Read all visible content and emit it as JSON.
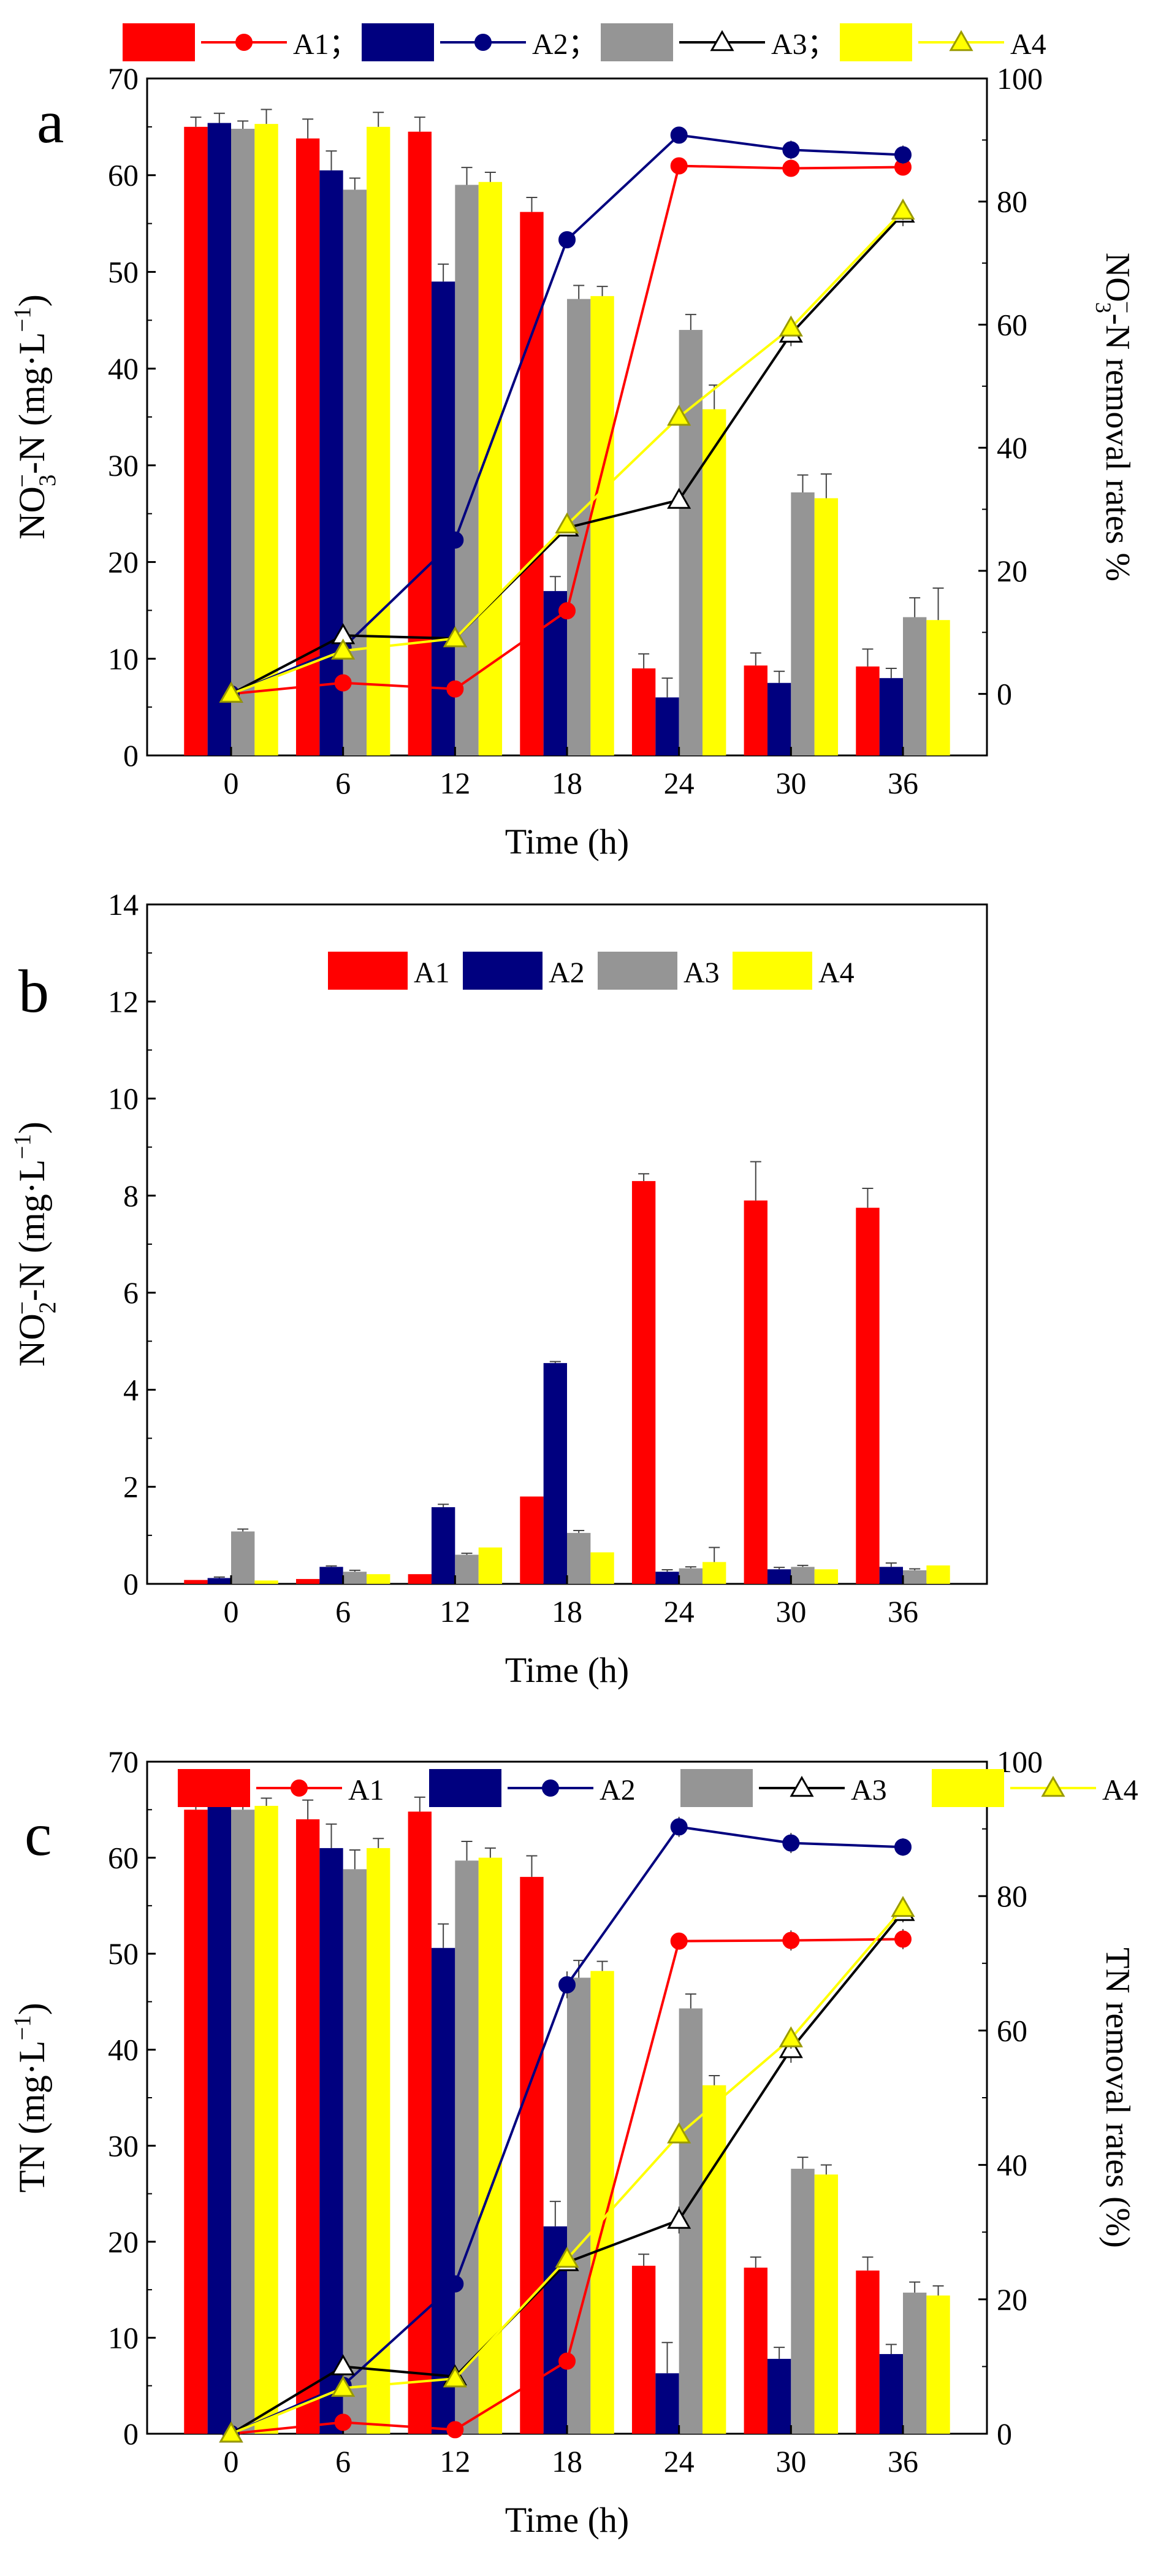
{
  "colors": {
    "A1": "#ff0000",
    "A2": "#00007f",
    "A3": "#959595",
    "A4": "#ffff00",
    "A3_line": "#000000",
    "errorbar": "#444444"
  },
  "chart_data": [
    {
      "type": "bar",
      "panel_letter": "a",
      "categories": [
        "0",
        "6",
        "12",
        "18",
        "24",
        "30",
        "36"
      ],
      "xlabel": "Time (h)",
      "ylabel": "NO3−-N (mg·L−1)",
      "ylabel_parts": [
        "NO",
        "3",
        "−",
        "-N (mg·L",
        "−1",
        ")"
      ],
      "ylim": [
        0,
        70
      ],
      "yticks": [
        "0",
        "10",
        "20",
        "30",
        "40",
        "50",
        "60",
        "70"
      ],
      "y2label": "NO3−-N removal rates %",
      "y2label_parts": [
        "NO",
        "3",
        "−",
        "-N removal rates %"
      ],
      "y2lim": [
        -10,
        100
      ],
      "y2ticks": [
        "0",
        "20",
        "40",
        "60",
        "80",
        "100"
      ],
      "legend": [
        "A1；",
        "A2；",
        "A3；",
        "A4"
      ],
      "bar_series": [
        {
          "name": "A1",
          "values": [
            65.0,
            63.8,
            64.5,
            56.2,
            9.0,
            9.3,
            9.2
          ],
          "errors": [
            1.0,
            2.0,
            1.5,
            1.5,
            1.5,
            1.3,
            1.8
          ]
        },
        {
          "name": "A2",
          "values": [
            65.4,
            60.5,
            49.0,
            17.0,
            6.0,
            7.5,
            8.0
          ],
          "errors": [
            1.0,
            2.0,
            1.8,
            1.5,
            2.0,
            1.2,
            1.0
          ]
        },
        {
          "name": "A3",
          "values": [
            64.8,
            58.5,
            59.0,
            47.2,
            44.0,
            27.2,
            14.3
          ],
          "errors": [
            0.8,
            1.2,
            1.8,
            1.4,
            1.6,
            1.8,
            2.0
          ]
        },
        {
          "name": "A4",
          "values": [
            65.3,
            65.0,
            59.3,
            47.5,
            35.8,
            26.6,
            14.0
          ],
          "errors": [
            1.5,
            1.5,
            1.0,
            1.0,
            2.5,
            2.5,
            3.3
          ]
        }
      ],
      "line_series": [
        {
          "name": "A1",
          "marker": "circle",
          "values": [
            0,
            1.8,
            0.8,
            13.5,
            85.8,
            85.4,
            85.6
          ],
          "errors": [
            0,
            0,
            0,
            0,
            0.5,
            0.5,
            0.5
          ]
        },
        {
          "name": "A2",
          "marker": "circle",
          "values": [
            0,
            7.5,
            25.0,
            73.8,
            90.8,
            88.4,
            87.6
          ],
          "errors": [
            0,
            0,
            0,
            1,
            1.2,
            1.5,
            1.5
          ]
        },
        {
          "name": "A3",
          "marker": "triangle-open",
          "values": [
            0,
            9.5,
            9.0,
            27.0,
            31.5,
            58.5,
            78.0
          ],
          "errors": [
            0,
            1,
            0,
            0,
            1,
            2,
            2
          ]
        },
        {
          "name": "A4",
          "marker": "triangle",
          "values": [
            0,
            7.0,
            9.0,
            27.5,
            45.0,
            59.5,
            78.5
          ],
          "errors": [
            0,
            0,
            0,
            0,
            0,
            1,
            1.5
          ]
        }
      ]
    },
    {
      "type": "bar",
      "panel_letter": "b",
      "categories": [
        "0",
        "6",
        "12",
        "18",
        "24",
        "30",
        "36"
      ],
      "xlabel": "Time (h)",
      "ylabel": "NO2−-N (mg·L−1)",
      "ylabel_parts": [
        "NO",
        "2",
        "−",
        "-N (mg·L",
        "−1",
        ")"
      ],
      "ylim": [
        0,
        14
      ],
      "yticks": [
        "0",
        "2",
        "4",
        "6",
        "8",
        "10",
        "12",
        "14"
      ],
      "legend": [
        "A1",
        "A2",
        "A3",
        "A4"
      ],
      "bar_series": [
        {
          "name": "A1",
          "values": [
            0.08,
            0.1,
            0.2,
            1.8,
            8.3,
            7.9,
            7.75
          ],
          "errors": [
            0,
            0,
            0,
            0,
            0.15,
            0.8,
            0.4
          ]
        },
        {
          "name": "A2",
          "values": [
            0.12,
            0.35,
            1.58,
            4.55,
            0.25,
            0.3,
            0.35
          ],
          "errors": [
            0.02,
            0.02,
            0.06,
            0.03,
            0.04,
            0.04,
            0.08
          ]
        },
        {
          "name": "A3",
          "values": [
            1.08,
            0.25,
            0.6,
            1.05,
            0.32,
            0.35,
            0.28
          ],
          "errors": [
            0.05,
            0.03,
            0.03,
            0.05,
            0.03,
            0.03,
            0.03
          ]
        },
        {
          "name": "A4",
          "values": [
            0.07,
            0.2,
            0.75,
            0.65,
            0.45,
            0.3,
            0.38
          ],
          "errors": [
            0,
            0,
            0,
            0,
            0.3,
            0,
            0
          ]
        }
      ]
    },
    {
      "type": "bar",
      "panel_letter": "c",
      "categories": [
        "0",
        "6",
        "12",
        "18",
        "24",
        "30",
        "36"
      ],
      "xlabel": "Time (h)",
      "ylabel": "TN (mg·L−1)",
      "ylabel_parts": [
        "TN (mg·L",
        "−1",
        ")"
      ],
      "ylim": [
        0,
        70
      ],
      "yticks": [
        "0",
        "10",
        "20",
        "30",
        "40",
        "50",
        "60",
        "70"
      ],
      "y2label": "TN removal rates (%)",
      "y2lim": [
        0,
        100
      ],
      "y2ticks": [
        "0",
        "20",
        "40",
        "60",
        "80",
        "100"
      ],
      "legend": [
        "A1",
        "A2",
        "A3",
        "A4"
      ],
      "bar_series": [
        {
          "name": "A1",
          "values": [
            65.0,
            64.0,
            64.8,
            58.0,
            17.5,
            17.3,
            17.0
          ],
          "errors": [
            1.5,
            2.0,
            1.5,
            2.2,
            1.2,
            1.1,
            1.4
          ]
        },
        {
          "name": "A2",
          "values": [
            65.3,
            61.0,
            50.6,
            21.6,
            6.3,
            7.8,
            8.3
          ],
          "errors": [
            1.5,
            2.5,
            2.5,
            2.6,
            3.2,
            1.2,
            1.0
          ]
        },
        {
          "name": "A3",
          "values": [
            65.0,
            58.8,
            59.7,
            47.5,
            44.3,
            27.6,
            14.7
          ],
          "errors": [
            1.2,
            2.0,
            2.0,
            1.8,
            1.5,
            1.2,
            1.1
          ]
        },
        {
          "name": "A4",
          "values": [
            65.4,
            61.0,
            60.0,
            48.2,
            36.3,
            27.0,
            14.4
          ],
          "errors": [
            0.8,
            1.0,
            1.0,
            1.0,
            1.0,
            1.0,
            1.0
          ]
        }
      ],
      "line_series": [
        {
          "name": "A1",
          "marker": "circle",
          "values": [
            0,
            1.7,
            0.6,
            10.8,
            73.3,
            73.4,
            73.6
          ],
          "errors": [
            0,
            0,
            0,
            0,
            1,
            1.5,
            1.5
          ]
        },
        {
          "name": "A2",
          "marker": "circle",
          "values": [
            0,
            7.2,
            22.3,
            66.8,
            90.3,
            87.9,
            87.3
          ],
          "errors": [
            0,
            0,
            0,
            2,
            1.5,
            1.5,
            1.3
          ]
        },
        {
          "name": "A3",
          "marker": "triangle-open",
          "values": [
            0,
            10.0,
            8.5,
            25.5,
            31.8,
            57.2,
            77.6
          ],
          "errors": [
            0,
            1.5,
            0,
            0,
            2,
            2,
            1.5
          ]
        },
        {
          "name": "A4",
          "marker": "triangle",
          "values": [
            0,
            6.8,
            8.2,
            26.0,
            44.5,
            58.8,
            78.2
          ],
          "errors": [
            0,
            0,
            0,
            0,
            0,
            1.5,
            1.2
          ]
        }
      ]
    }
  ]
}
